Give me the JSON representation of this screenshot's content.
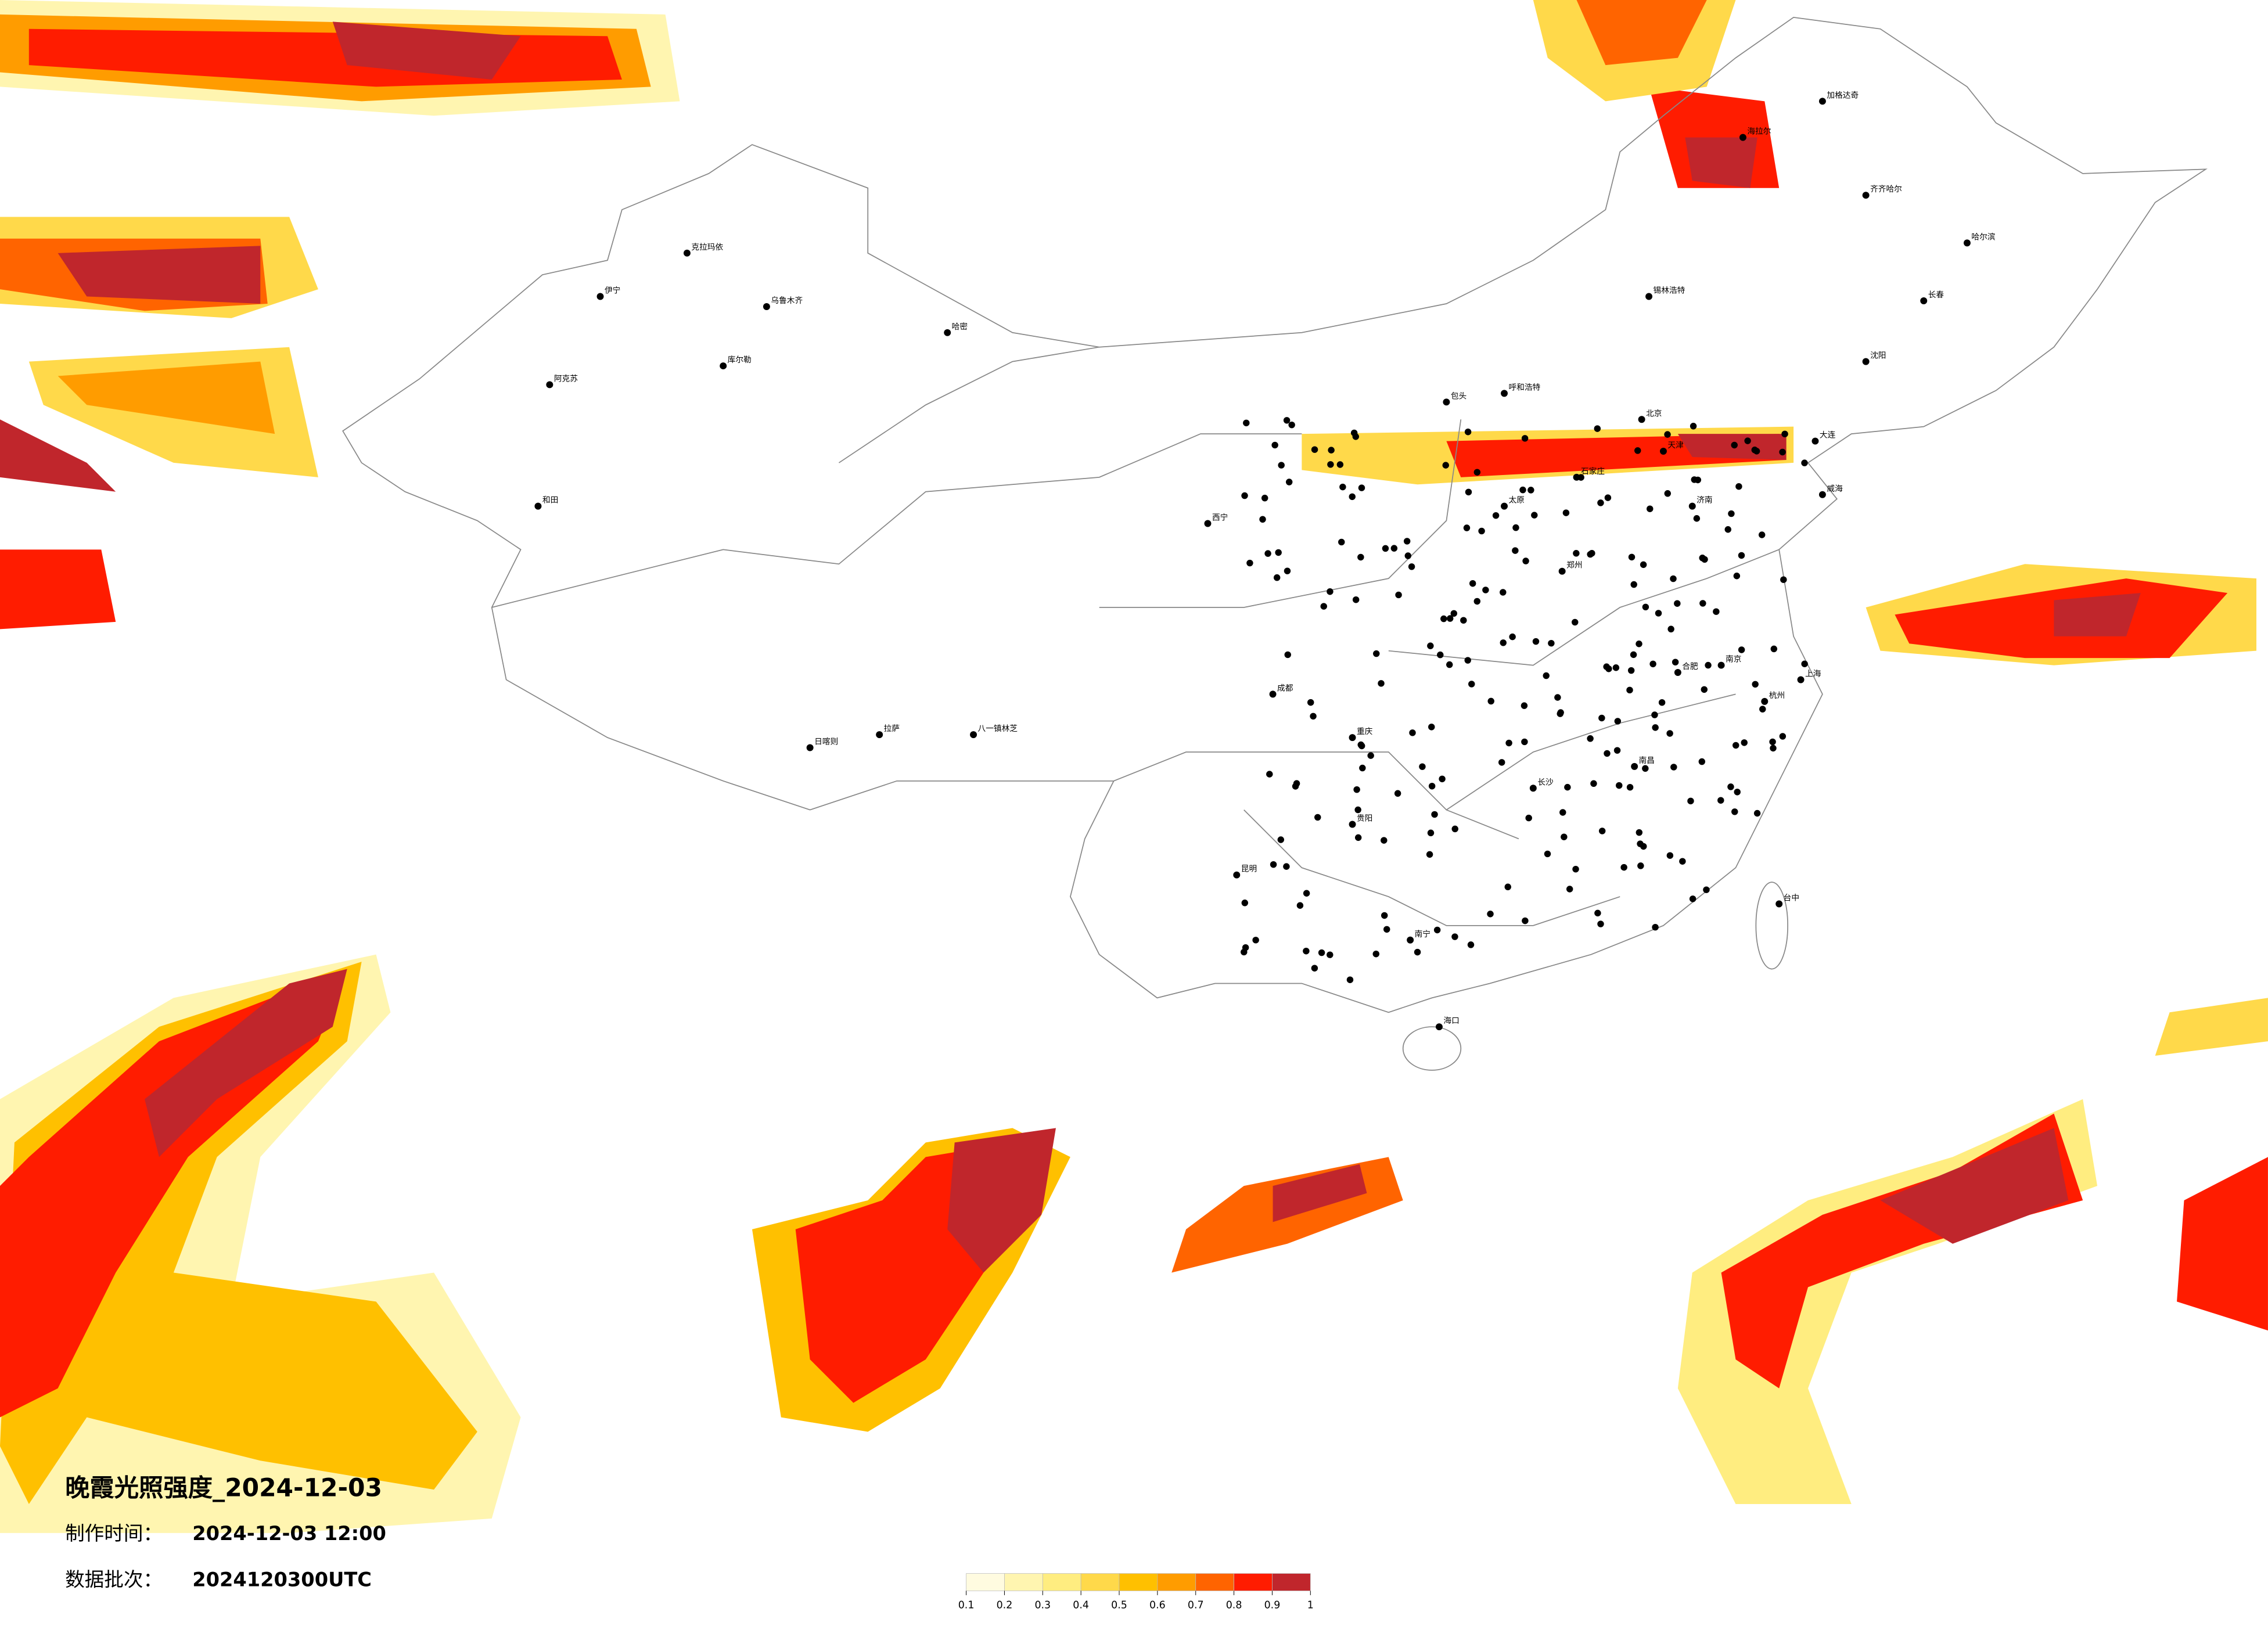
{
  "title": "晚霞光照强度_2024-12-03",
  "made_label": "制作时间：",
  "made_time": "2024-12-03 12:00",
  "batch_label": "数据批次：",
  "batch": "2024120300UTC",
  "legend": {
    "ticks": [
      0.1,
      0.2,
      0.3,
      0.4,
      0.5,
      0.6,
      0.7,
      0.8,
      0.9,
      1
    ],
    "colors": [
      "#fffbe0",
      "#fff5b0",
      "#ffed80",
      "#ffd94a",
      "#ffc000",
      "#ff9c00",
      "#ff6400",
      "#ff1c00",
      "#c0262c"
    ]
  },
  "cities": [
    "克拉玛依",
    "乌鲁木齐",
    "伊宁",
    "阿克苏",
    "和田",
    "哈密",
    "库尔勒",
    "拉萨",
    "日喀则",
    "八一镇林芝",
    "西宁",
    "呼和浩特",
    "包头",
    "北京",
    "天津",
    "石家庄",
    "太原",
    "郑州",
    "济南",
    "威海",
    "南京",
    "上海",
    "杭州",
    "合肥",
    "长沙",
    "南昌",
    "台中",
    "海口",
    "南宁",
    "贵阳",
    "昆明",
    "成都",
    "重庆",
    "哈尔滨",
    "长春",
    "沈阳",
    "大连",
    "海拉尔",
    "齐齐哈尔",
    "锡林浩特",
    "加格达奇"
  ]
}
